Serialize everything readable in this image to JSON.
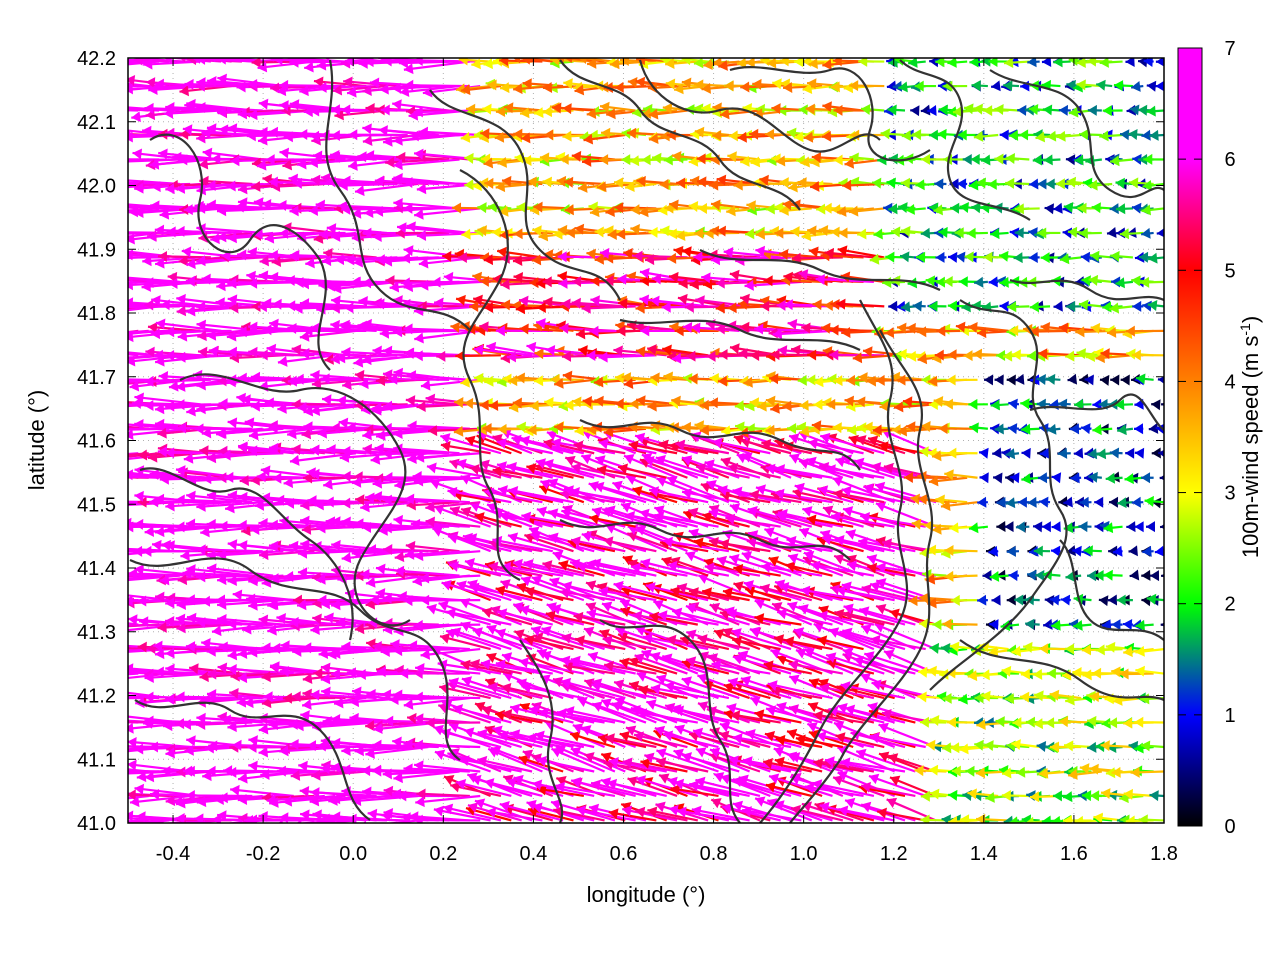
{
  "chart_data": {
    "type": "quiver",
    "title": "",
    "xlabel": "longitude (°)",
    "ylabel": "latitude (°)",
    "xlim": [
      -0.5,
      1.8
    ],
    "ylim": [
      41.0,
      42.2
    ],
    "x_ticks": [
      "-0.4",
      "-0.2",
      "0.0",
      "0.2",
      "0.4",
      "0.6",
      "0.8",
      "1.0",
      "1.2",
      "1.4",
      "1.6",
      "1.8"
    ],
    "x_tick_values": [
      -0.4,
      -0.2,
      0.0,
      0.2,
      0.4,
      0.6,
      0.8,
      1.0,
      1.2,
      1.4,
      1.6,
      1.8
    ],
    "y_ticks": [
      "41.0",
      "41.1",
      "41.2",
      "41.3",
      "41.4",
      "41.5",
      "41.6",
      "41.7",
      "41.8",
      "41.9",
      "42.0",
      "42.1",
      "42.2"
    ],
    "y_tick_values": [
      41.0,
      41.1,
      41.2,
      41.3,
      41.4,
      41.5,
      41.6,
      41.7,
      41.8,
      41.9,
      42.0,
      42.1,
      42.2
    ],
    "colorbar": {
      "label_main": "100m-wind speed (m s",
      "label_sup": "-1",
      "label_end": ")",
      "range": [
        0,
        7
      ],
      "ticks": [
        "0",
        "1",
        "2",
        "3",
        "4",
        "5",
        "6",
        "7"
      ],
      "tick_values": [
        0,
        1,
        2,
        3,
        4,
        5,
        6,
        7
      ],
      "colors": [
        "#000000",
        "#0000ff",
        "#00ff00",
        "#ffff00",
        "#ff8000",
        "#ff0000",
        "#ff00ff"
      ]
    },
    "grid": true,
    "contour_color": "#333333",
    "wind_field_regions": [
      {
        "region": "west",
        "lon_range": [
          -0.5,
          0.3
        ],
        "lat_range": [
          41.0,
          42.2
        ],
        "speed_ms": [
          5.5,
          7.0
        ],
        "direction": "from east, toward west"
      },
      {
        "region": "central",
        "lon_range": [
          0.3,
          1.2
        ],
        "lat_range": [
          41.5,
          42.2
        ],
        "speed_ms": [
          2.0,
          5.0
        ],
        "direction": "from east, toward west"
      },
      {
        "region": "south-central",
        "lon_range": [
          0.3,
          1.3
        ],
        "lat_range": [
          41.0,
          41.6
        ],
        "speed_ms": [
          5.0,
          7.0
        ],
        "direction": "from east-southeast, toward west-northwest"
      },
      {
        "region": "northeast",
        "lon_range": [
          1.2,
          1.8
        ],
        "lat_range": [
          41.8,
          42.2
        ],
        "speed_ms": [
          0.5,
          2.5
        ],
        "direction": "weak, toward west"
      },
      {
        "region": "east",
        "lon_range": [
          1.4,
          1.8
        ],
        "lat_range": [
          41.3,
          41.7
        ],
        "speed_ms": [
          0.5,
          1.5
        ],
        "direction": "weak, toward west"
      },
      {
        "region": "southeast",
        "lon_range": [
          1.2,
          1.8
        ],
        "lat_range": [
          41.0,
          41.3
        ],
        "speed_ms": [
          2.0,
          3.0
        ],
        "direction": "from east, toward west"
      }
    ]
  }
}
